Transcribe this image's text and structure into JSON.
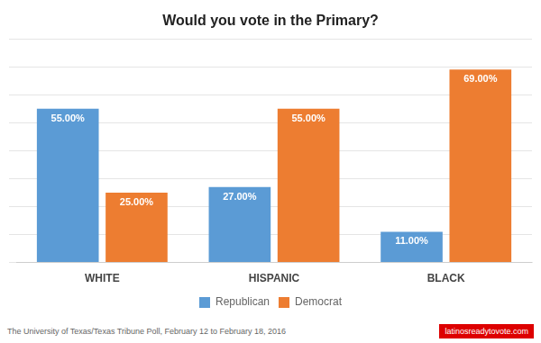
{
  "chart_data": {
    "type": "bar",
    "title": "Would you vote in the Primary?",
    "categories": [
      "WHITE",
      "HISPANIC",
      "BLACK"
    ],
    "series": [
      {
        "name": "Republican",
        "color": "#5B9BD5",
        "values": [
          55.0,
          27.0,
          11.0
        ],
        "value_labels": [
          "55.00%",
          "27.00%",
          "11.00%"
        ]
      },
      {
        "name": "Democrat",
        "color": "#ED7D31",
        "values": [
          25.0,
          55.0,
          69.0
        ],
        "value_labels": [
          "25.00%",
          "55.00%",
          "69.00%"
        ]
      }
    ],
    "ylim": [
      0,
      80
    ],
    "yticks": [
      0,
      10,
      20,
      30,
      40,
      50,
      60,
      70,
      80
    ],
    "grid": true,
    "legend": "bottom",
    "data_labels": true,
    "tick_labels": "x",
    "annotations": [
      "The University of Texas/Texas Tribune Poll, February 12 to February 18, 2016",
      "latinosreadytovote.com"
    ]
  }
}
